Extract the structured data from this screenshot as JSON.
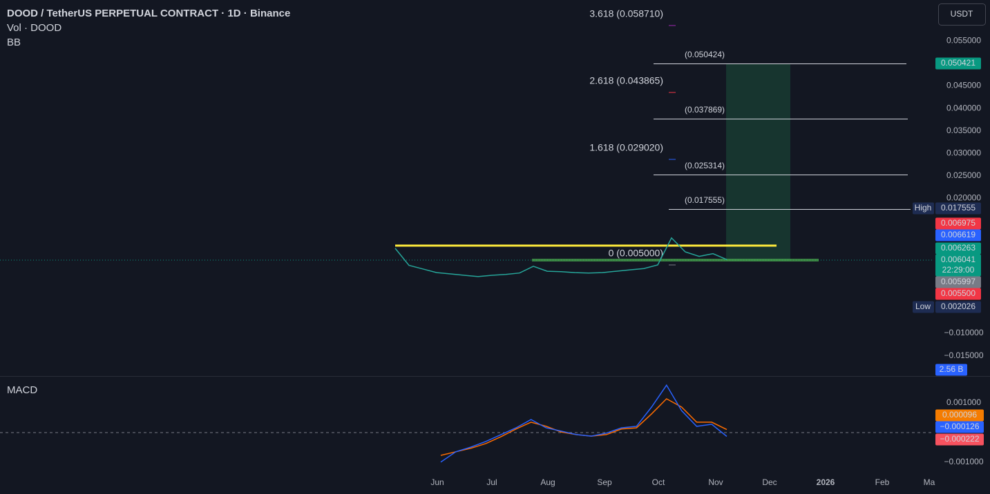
{
  "header": {
    "title": "DOOD / TetherUS PERPETUAL CONTRACT · 1D · Binance",
    "volume": "Vol · DOOD",
    "indicator": "BB",
    "macd": "MACD",
    "currency": "USDT"
  },
  "price_pane": {
    "ylim": [
      -0.0195,
      0.0641
    ],
    "ticks": [
      {
        "value": 0.055,
        "label": "0.055000"
      },
      {
        "value": 0.045,
        "label": "0.045000"
      },
      {
        "value": 0.04,
        "label": "0.040000"
      },
      {
        "value": 0.035,
        "label": "0.035000"
      },
      {
        "value": 0.03,
        "label": "0.030000"
      },
      {
        "value": 0.025,
        "label": "0.025000"
      },
      {
        "value": 0.02,
        "label": "0.020000"
      },
      {
        "value": -0.01,
        "label": "−0.010000"
      },
      {
        "value": -0.015,
        "label": "−0.015000"
      }
    ],
    "fib_levels": [
      {
        "label": "3.618 (0.058710)",
        "color": "#9c27b0"
      },
      {
        "label": "2.618 (0.043865)",
        "color": "#f23645"
      },
      {
        "label": "1.618 (0.029020)",
        "color": "#2962ff"
      },
      {
        "label": "0 (0.005000)",
        "color": "#787b86"
      }
    ],
    "position_levels": [
      "(0.050424)",
      "(0.037869)",
      "(0.025314)",
      "(0.017555)"
    ],
    "tags": [
      {
        "text": "0.050421",
        "color": "#089981"
      },
      {
        "text": "0.017555",
        "color": "#1e2c52",
        "note": "High"
      },
      {
        "text": "0.006975",
        "color": "#f23645"
      },
      {
        "text": "0.006619",
        "color": "#2962ff"
      },
      {
        "text": "0.006263",
        "color": "#089981"
      },
      {
        "text": "0.006041",
        "color": "#089981",
        "countdown": "22:29:00"
      },
      {
        "text": "0.005997",
        "color": "#787b86"
      },
      {
        "text": "0.005500",
        "color": "#f23645"
      },
      {
        "text": "0.002026",
        "color": "#1e2c52",
        "note": "Low"
      },
      {
        "text": "2.56 B",
        "color": "#2962ff"
      }
    ],
    "price_line": {
      "color": "#26a69a",
      "values": [
        0.0089,
        0.0051,
        0.0043,
        0.0035,
        0.0032,
        0.0029,
        0.0026,
        0.0029,
        0.0031,
        0.0034,
        0.0049,
        0.0038,
        0.0037,
        0.0035,
        0.0034,
        0.0035,
        0.0038,
        0.0041,
        0.0044,
        0.0052,
        0.0112,
        0.0081,
        0.0071,
        0.0077,
        0.0064
      ]
    }
  },
  "macd_pane": {
    "ylim": [
      -0.00147,
      0.00184
    ],
    "ticks": [
      {
        "value": 0.001,
        "label": "0.001000"
      },
      {
        "value": -0.001,
        "label": "−0.001000"
      }
    ],
    "tags": [
      {
        "text": "0.000096",
        "color": "#f57c00"
      },
      {
        "text": "−0.000126",
        "color": "#2962ff"
      },
      {
        "text": "−0.000222",
        "color": "#f7525f"
      }
    ],
    "macd": {
      "color": "#2962ff",
      "values": [
        -0.001,
        -0.00065,
        -0.00049,
        -0.0003,
        -7e-05,
        0.00016,
        0.00044,
        0.00016,
        5e-05,
        -7e-05,
        -0.00012,
        -2e-05,
        0.00016,
        0.00021,
        0.00086,
        0.0016,
        0.00074,
        0.00021,
        0.00028,
        -0.00013
      ]
    },
    "signal": {
      "color": "#ff6d00",
      "values": [
        -0.00077,
        -0.00065,
        -0.00053,
        -0.00037,
        -0.00014,
        0.00012,
        0.00035,
        0.00021,
        2e-05,
        -7e-05,
        -0.00012,
        -7e-05,
        0.00012,
        0.00016,
        0.00063,
        0.00114,
        0.00086,
        0.00035,
        0.00035,
        0.0001
      ]
    }
  },
  "time_axis": [
    "Jun",
    "Jul",
    "Aug",
    "Sep",
    "Oct",
    "Nov",
    "Dec",
    "2026",
    "Feb",
    "Ma"
  ]
}
